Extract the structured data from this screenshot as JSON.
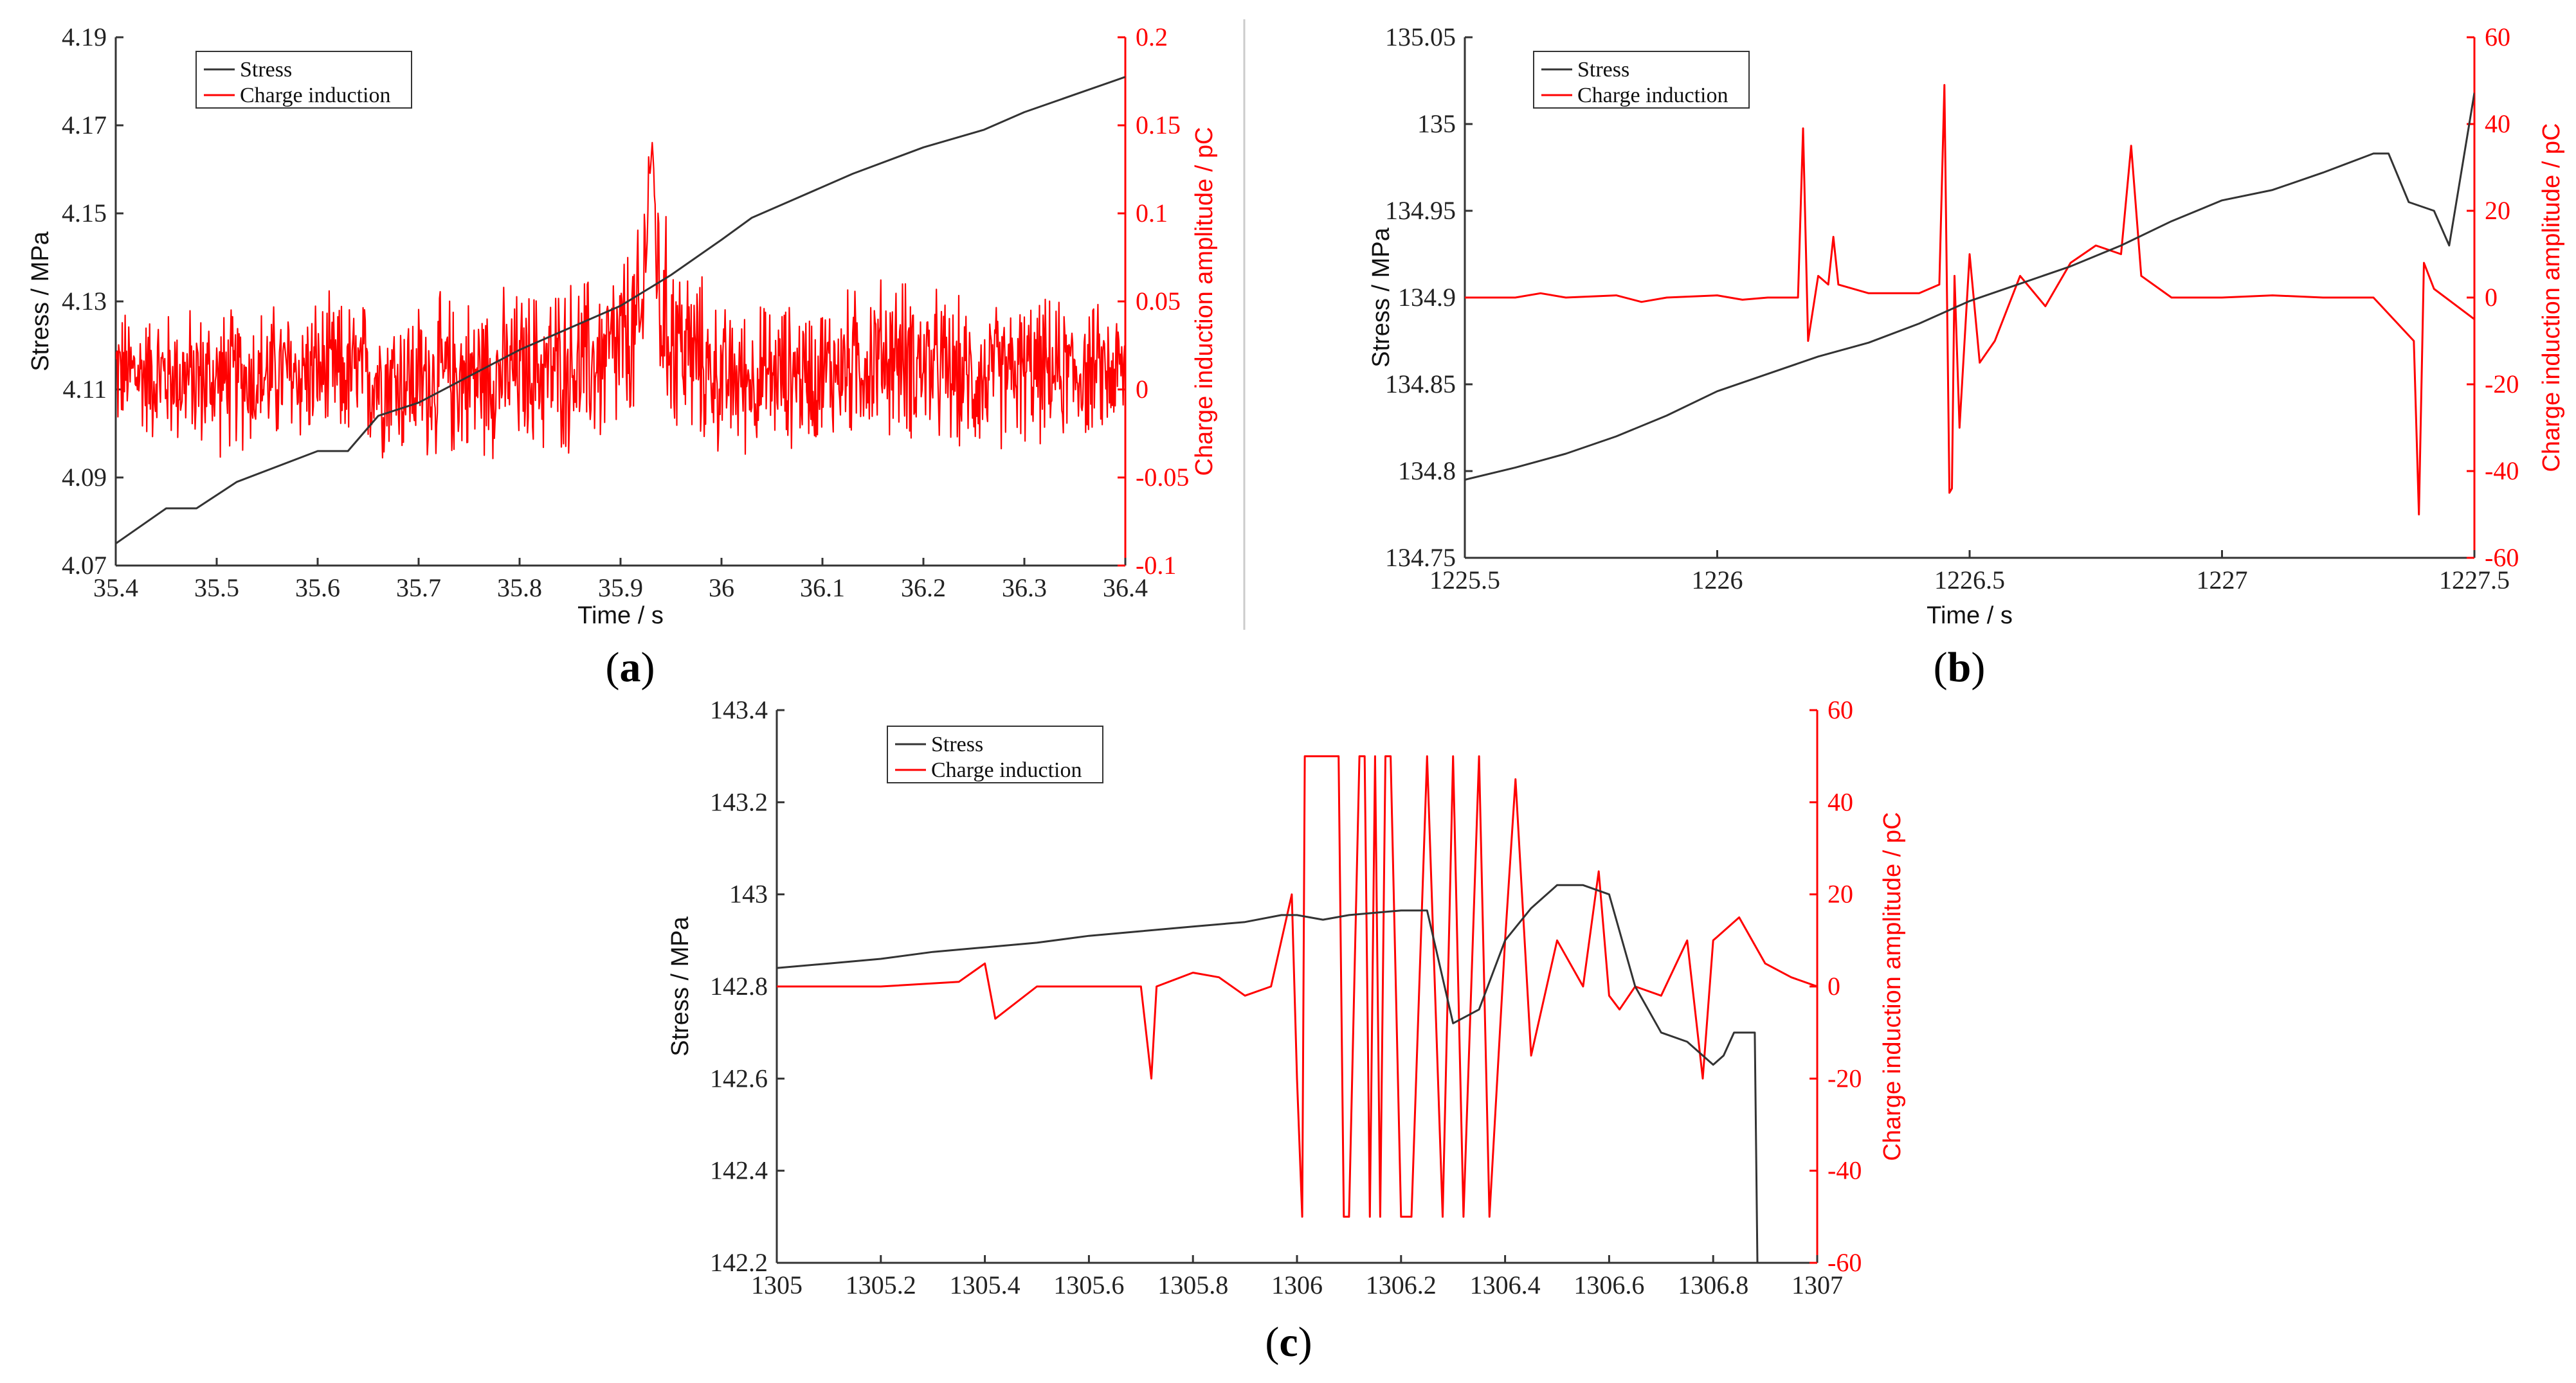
{
  "chart_data": [
    {
      "id": "a",
      "type": "line",
      "caption_open": "(",
      "caption_letter": "a",
      "caption_close": ")",
      "xlabel": "Time / s",
      "ylabel_left": "Stress / MPa",
      "ylabel_right": "Charge induction amplitude / pC",
      "xlim": [
        35.4,
        36.4
      ],
      "ylim_left": [
        4.07,
        4.19
      ],
      "ylim_right": [
        -0.1,
        0.2
      ],
      "xticks": [
        "35.4",
        "35.5",
        "35.6",
        "35.7",
        "35.8",
        "35.9",
        "36",
        "36.1",
        "36.2",
        "36.3",
        "36.4"
      ],
      "yticks_left": [
        "4.07",
        "4.09",
        "4.11",
        "4.13",
        "4.15",
        "4.17",
        "4.19"
      ],
      "yticks_right": [
        "-0.1",
        "-0.05",
        "0",
        "0.05",
        "0.1",
        "0.15",
        "0.2"
      ],
      "legend": [
        "Stress",
        "Charge induction"
      ],
      "series": [
        {
          "name": "Stress",
          "axis": "left",
          "color": "#333333",
          "x": [
            35.4,
            35.45,
            35.48,
            35.52,
            35.6,
            35.63,
            35.66,
            35.7,
            35.75,
            35.8,
            35.85,
            35.9,
            35.95,
            36.0,
            36.03,
            36.07,
            36.13,
            36.2,
            36.26,
            36.3,
            36.35,
            36.4
          ],
          "y": [
            4.075,
            4.083,
            4.083,
            4.089,
            4.096,
            4.096,
            4.104,
            4.107,
            4.113,
            4.119,
            4.124,
            4.129,
            4.136,
            4.144,
            4.149,
            4.153,
            4.159,
            4.165,
            4.169,
            4.173,
            4.177,
            4.181
          ]
        },
        {
          "name": "Charge induction",
          "axis": "right",
          "color": "#ff0000",
          "noisy": true,
          "x": [
            35.4,
            35.5,
            35.6,
            35.7,
            35.8,
            35.88,
            35.92,
            35.93,
            35.94,
            35.97,
            36.0,
            36.1,
            36.17,
            36.25,
            36.3,
            36.4
          ],
          "y": [
            0.01,
            0.005,
            0.01,
            0.005,
            0.01,
            0.015,
            0.03,
            0.14,
            0.04,
            0.02,
            0.005,
            0.01,
            0.02,
            0.005,
            0.01,
            0.01
          ],
          "amplitude": [
            0.035,
            0.04,
            0.04,
            0.045,
            0.045,
            0.05,
            0.06,
            0.03,
            0.06,
            0.05,
            0.04,
            0.04,
            0.045,
            0.04,
            0.04,
            0.035
          ]
        }
      ]
    },
    {
      "id": "b",
      "type": "line",
      "caption_open": "(",
      "caption_letter": "b",
      "caption_close": ")",
      "xlabel": "Time / s",
      "ylabel_left": "Stress / MPa",
      "ylabel_right": "Charge induction amplitude / pC",
      "xlim": [
        1225.5,
        1227.5
      ],
      "ylim_left": [
        134.75,
        135.05
      ],
      "ylim_right": [
        -60,
        60
      ],
      "xticks": [
        "1225.5",
        "1226",
        "1226.5",
        "1227",
        "1227.5"
      ],
      "yticks_left": [
        "134.75",
        "134.8",
        "134.85",
        "134.9",
        "134.95",
        "135",
        "135.05"
      ],
      "yticks_right": [
        "-60",
        "-40",
        "-20",
        "0",
        "20",
        "40",
        "60"
      ],
      "legend": [
        "Stress",
        "Charge induction"
      ],
      "series": [
        {
          "name": "Stress",
          "axis": "left",
          "color": "#333333",
          "x": [
            1225.5,
            1225.6,
            1225.7,
            1225.8,
            1225.9,
            1226.0,
            1226.1,
            1226.2,
            1226.3,
            1226.4,
            1226.5,
            1226.6,
            1226.7,
            1226.8,
            1226.9,
            1227.0,
            1227.1,
            1227.2,
            1227.3,
            1227.33,
            1227.37,
            1227.42,
            1227.45,
            1227.5
          ],
          "y": [
            134.795,
            134.802,
            134.81,
            134.82,
            134.832,
            134.846,
            134.856,
            134.866,
            134.874,
            134.885,
            134.898,
            134.908,
            134.918,
            134.93,
            134.944,
            134.956,
            134.962,
            134.972,
            134.983,
            134.983,
            134.955,
            134.95,
            134.93,
            135.018
          ]
        },
        {
          "name": "Charge induction",
          "axis": "right",
          "color": "#ff0000",
          "x": [
            1225.5,
            1225.6,
            1225.65,
            1225.7,
            1225.8,
            1225.85,
            1225.9,
            1226.0,
            1226.05,
            1226.1,
            1226.16,
            1226.17,
            1226.18,
            1226.2,
            1226.22,
            1226.23,
            1226.24,
            1226.3,
            1226.4,
            1226.44,
            1226.45,
            1226.46,
            1226.465,
            1226.47,
            1226.48,
            1226.5,
            1226.52,
            1226.55,
            1226.6,
            1226.65,
            1226.7,
            1226.75,
            1226.8,
            1226.82,
            1226.84,
            1226.9,
            1227.0,
            1227.1,
            1227.2,
            1227.3,
            1227.38,
            1227.39,
            1227.4,
            1227.42,
            1227.5
          ],
          "y": [
            0,
            0,
            1,
            0,
            0.5,
            -1,
            0,
            0.5,
            -0.5,
            0,
            0,
            39,
            -10,
            5,
            3,
            14,
            3,
            1,
            1,
            3,
            49,
            -45,
            -44,
            5,
            -30,
            10,
            -15,
            -10,
            5,
            -2,
            8,
            12,
            10,
            35,
            5,
            0,
            0,
            0.5,
            0,
            0,
            -10,
            -50,
            8,
            2,
            -5
          ]
        }
      ]
    },
    {
      "id": "c",
      "type": "line",
      "caption_open": "(",
      "caption_letter": "c",
      "caption_close": ")",
      "xlabel": "",
      "ylabel_left": "Stress / MPa",
      "ylabel_right": "Charge induction amplitude / pC",
      "xlim": [
        1305,
        1307
      ],
      "ylim_left": [
        142.2,
        143.4
      ],
      "ylim_right": [
        -60,
        60
      ],
      "xticks": [
        "1305",
        "1305.2",
        "1305.4",
        "1305.6",
        "1305.8",
        "1306",
        "1306.2",
        "1306.4",
        "1306.6",
        "1306.8",
        "1307"
      ],
      "yticks_left": [
        "142.2",
        "142.4",
        "142.6",
        "142.8",
        "143",
        "143.2",
        "143.4"
      ],
      "yticks_right": [
        "-60",
        "-40",
        "-20",
        "0",
        "20",
        "40",
        "60"
      ],
      "legend": [
        "Stress",
        "Charge induction"
      ],
      "series": [
        {
          "name": "Stress",
          "axis": "left",
          "color": "#333333",
          "x": [
            1305.0,
            1305.1,
            1305.2,
            1305.3,
            1305.4,
            1305.5,
            1305.6,
            1305.7,
            1305.8,
            1305.9,
            1305.97,
            1306.0,
            1306.05,
            1306.1,
            1306.2,
            1306.25,
            1306.3,
            1306.35,
            1306.4,
            1306.45,
            1306.5,
            1306.55,
            1306.6,
            1306.65,
            1306.7,
            1306.75,
            1306.8,
            1306.82,
            1306.84,
            1306.88,
            1306.885,
            1306.9
          ],
          "y": [
            142.84,
            142.85,
            142.86,
            142.875,
            142.885,
            142.895,
            142.91,
            142.92,
            142.93,
            142.94,
            142.955,
            142.955,
            142.945,
            142.955,
            142.965,
            142.965,
            142.72,
            142.75,
            142.9,
            142.97,
            143.02,
            143.02,
            143.0,
            142.8,
            142.7,
            142.68,
            142.63,
            142.65,
            142.7,
            142.7,
            142.2,
            142.2
          ]
        },
        {
          "name": "Charge induction",
          "axis": "right",
          "color": "#ff0000",
          "x": [
            1305.0,
            1305.2,
            1305.35,
            1305.4,
            1305.42,
            1305.5,
            1305.6,
            1305.7,
            1305.72,
            1305.73,
            1305.8,
            1305.85,
            1305.9,
            1305.95,
            1305.99,
            1306.0,
            1306.01,
            1306.015,
            1306.02,
            1306.03,
            1306.08,
            1306.09,
            1306.1,
            1306.12,
            1306.13,
            1306.14,
            1306.15,
            1306.16,
            1306.17,
            1306.18,
            1306.2,
            1306.22,
            1306.25,
            1306.28,
            1306.3,
            1306.32,
            1306.35,
            1306.37,
            1306.4,
            1306.42,
            1306.45,
            1306.5,
            1306.55,
            1306.58,
            1306.6,
            1306.62,
            1306.65,
            1306.7,
            1306.75,
            1306.78,
            1306.8,
            1306.85,
            1306.9,
            1306.95,
            1307.0
          ],
          "y": [
            0,
            0,
            1,
            5,
            -7,
            0,
            0,
            0,
            -20,
            0,
            3,
            2,
            -2,
            0,
            20,
            -20,
            -50,
            50,
            50,
            50,
            50,
            -50,
            -50,
            50,
            50,
            -50,
            50,
            -50,
            50,
            50,
            -50,
            -50,
            50,
            -50,
            50,
            -50,
            50,
            -50,
            10,
            45,
            -15,
            10,
            0,
            25,
            -2,
            -5,
            0,
            -2,
            10,
            -20,
            10,
            15,
            5,
            2,
            0
          ]
        }
      ]
    }
  ]
}
